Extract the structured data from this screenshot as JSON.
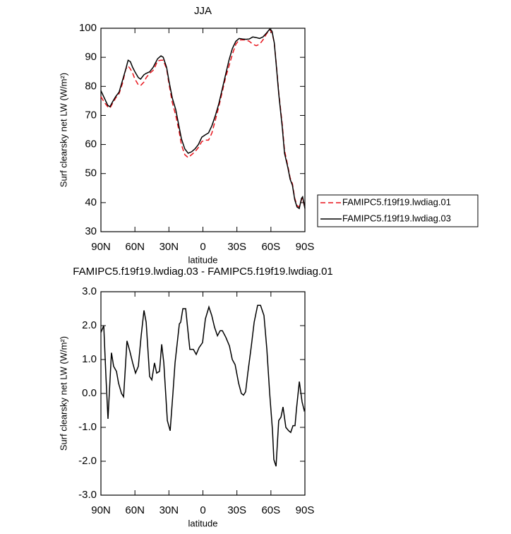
{
  "chart_data": [
    {
      "type": "line",
      "title": "JJA",
      "x_label": "latitude",
      "y_label": "Surf clearsky net LW (W/m²)",
      "x": [
        90,
        87,
        84,
        82,
        80,
        77,
        74,
        71,
        68,
        66,
        64,
        62,
        60,
        57,
        55,
        52,
        50,
        47,
        44,
        42,
        40,
        37,
        35,
        32,
        30,
        27,
        24,
        21,
        19,
        16,
        13,
        10,
        7,
        4,
        1,
        -2,
        -5,
        -8,
        -11,
        -14,
        -17,
        -20,
        -23,
        -26,
        -29,
        -32,
        -35,
        -38,
        -41,
        -44,
        -47,
        -50,
        -53,
        -56,
        -59,
        -61,
        -63,
        -65,
        -67,
        -70,
        -72,
        -75,
        -77,
        -79,
        -81,
        -83,
        -85,
        -87,
        -88,
        -90
      ],
      "series": [
        {
          "name": "FAMIPC5.f19f19.lwdiag.01",
          "color": "#e8141c",
          "line_style": "dashed",
          "values": [
            76.5,
            74.5,
            73,
            72.5,
            74,
            76,
            77.5,
            81,
            86,
            87,
            86,
            84.5,
            82.5,
            80.5,
            80.3,
            81.5,
            83,
            84.5,
            85.5,
            87,
            88.8,
            89,
            89,
            86,
            81,
            74.5,
            70,
            64.5,
            60,
            56.5,
            55.5,
            56.5,
            57.5,
            59,
            61,
            61.5,
            61.5,
            64,
            68.5,
            73,
            78,
            83,
            87,
            91,
            94.5,
            96,
            96,
            96,
            95.5,
            94.5,
            94,
            94.5,
            96,
            98,
            99.5,
            98.5,
            95,
            86.5,
            77.5,
            67,
            58,
            52.5,
            48.5,
            46.5,
            41.5,
            39,
            38.5,
            41,
            41.5,
            38
          ]
        },
        {
          "name": "FAMIPC5.f19f19.lwdiag.03",
          "color": "#000000",
          "line_style": "solid",
          "values": [
            78.5,
            76,
            73.5,
            73,
            74.5,
            76.5,
            78,
            82,
            86,
            89,
            88.5,
            86.5,
            85,
            83,
            82.5,
            84,
            84.5,
            85,
            86.5,
            88,
            89.5,
            90.5,
            90,
            86.5,
            82,
            76,
            72,
            66,
            62,
            58.5,
            57,
            57.5,
            58.5,
            60,
            62.5,
            63.3,
            64,
            66.5,
            70,
            74,
            79,
            84,
            89,
            93,
            95.5,
            96.5,
            96.3,
            96.2,
            96.3,
            97,
            96.8,
            96.5,
            97,
            98.3,
            99.7,
            99,
            95,
            86,
            77,
            66,
            57,
            52,
            48,
            46,
            41,
            38.5,
            38,
            41.5,
            42,
            38
          ]
        }
      ],
      "xlim": [
        90,
        -90
      ],
      "xticks": [
        {
          "value": 90,
          "label": "90N"
        },
        {
          "value": 60,
          "label": "60N"
        },
        {
          "value": 30,
          "label": "30N"
        },
        0,
        {
          "value": -30,
          "label": "30S"
        },
        {
          "value": -60,
          "label": "60S"
        },
        {
          "value": -90,
          "label": "90S"
        }
      ],
      "ylim": [
        30,
        100
      ],
      "yticks": [
        30,
        40,
        50,
        60,
        70,
        80,
        90,
        100
      ],
      "legend": "right"
    },
    {
      "type": "line",
      "title": "FAMIPC5.f19f19.lwdiag.03 - FAMIPC5.f19f19.lwdiag.01",
      "x_label": "latitude",
      "y_label": "Surf clearsky net LW (W/m²)",
      "x": [
        90,
        87.5,
        85.6,
        83.8,
        80.7,
        78.8,
        76.3,
        74.4,
        71.9,
        70,
        67,
        64.5,
        62,
        59.5,
        57,
        54.5,
        52,
        50.1,
        47,
        45.1,
        42.7,
        40.8,
        38.3,
        36.4,
        34.5,
        31.4,
        28.9,
        26.5,
        24.6,
        20.8,
        19.6,
        17.7,
        15.2,
        13.4,
        11.5,
        8.4,
        5.9,
        3.4,
        0.3,
        -2.2,
        -5.3,
        -7.8,
        -10.3,
        -12.8,
        -15.2,
        -17.2,
        -20.3,
        -23.4,
        -25.9,
        -28.4,
        -31.5,
        -33.9,
        -35.8,
        -37.7,
        -39.6,
        -42.7,
        -45.2,
        -48.3,
        -50.8,
        -53.9,
        -56.4,
        -58.9,
        -61.4,
        -62.6,
        -64.5,
        -66.9,
        -68.9,
        -70.7,
        -73.2,
        -75.7,
        -77.5,
        -79.5,
        -81.3,
        -82.6,
        -85.1,
        -87.5,
        -89.4,
        -90
      ],
      "values": [
        1.8,
        2.0,
        0.5,
        -0.75,
        1.2,
        0.8,
        0.65,
        0.3,
        0.0,
        -0.1,
        1.55,
        1.25,
        0.9,
        0.6,
        0.8,
        1.7,
        2.45,
        2.1,
        0.5,
        0.4,
        0.9,
        0.6,
        0.65,
        1.45,
        0.9,
        -0.8,
        -1.1,
        0.0,
        0.9,
        2.05,
        2.1,
        2.5,
        2.5,
        1.9,
        1.3,
        1.3,
        1.15,
        1.35,
        1.5,
        2.2,
        2.55,
        2.3,
        1.95,
        1.7,
        1.85,
        1.85,
        1.65,
        1.4,
        1.0,
        0.85,
        0.3,
        0.0,
        -0.05,
        0.05,
        0.6,
        1.4,
        2.1,
        2.6,
        2.6,
        2.3,
        1.3,
        0.0,
        -1.1,
        -1.95,
        -2.15,
        -0.8,
        -0.7,
        -0.4,
        -1.0,
        -1.1,
        -1.15,
        -0.95,
        -0.95,
        -0.45,
        0.35,
        -0.25,
        -0.5,
        -0.45
      ],
      "color": "#000000",
      "xlim": [
        90,
        -90
      ],
      "xticks": [
        {
          "value": 90,
          "label": "90N"
        },
        {
          "value": 60,
          "label": "60N"
        },
        {
          "value": 30,
          "label": "30N"
        },
        0,
        {
          "value": -30,
          "label": "30S"
        },
        {
          "value": -60,
          "label": "60S"
        },
        {
          "value": -90,
          "label": "90S"
        }
      ],
      "ylim": [
        -3,
        3
      ],
      "yticks": [
        {
          "value": -3,
          "label": "-3.0"
        },
        {
          "value": -2,
          "label": "-2.0"
        },
        {
          "value": -1,
          "label": "-1.0"
        },
        {
          "value": 0,
          "label": "0.0"
        },
        {
          "value": 1,
          "label": "1.0"
        },
        {
          "value": 2,
          "label": "2.0"
        },
        {
          "value": 3,
          "label": "3.0"
        }
      ]
    }
  ]
}
